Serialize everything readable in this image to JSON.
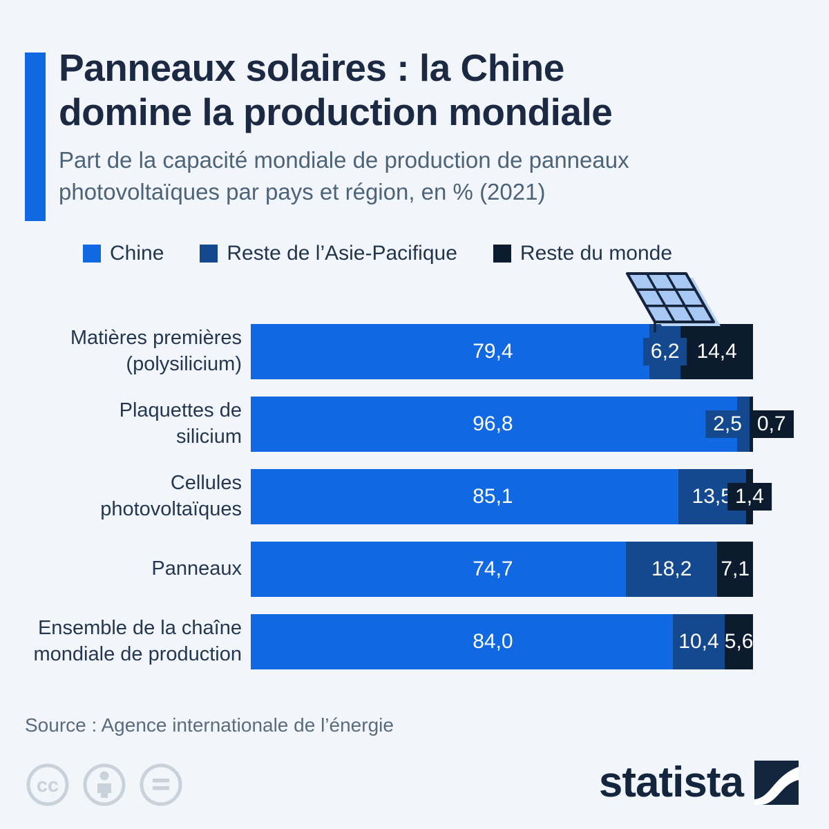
{
  "header": {
    "title_lines": [
      "Panneaux solaires : la Chine",
      "domine la production mondiale"
    ],
    "subtitle_lines": [
      "Part de la capacité mondiale de production de panneaux",
      "photovoltaïques par pays et région, en % (2021)"
    ],
    "accent_color": "#1168e3"
  },
  "legend": [
    {
      "label": "Chine",
      "color": "#1168e3"
    },
    {
      "label": "Reste de l’Asie-Pacifique",
      "color": "#15498f"
    },
    {
      "label": "Reste du monde",
      "color": "#0c1c2e"
    }
  ],
  "chart_data": {
    "type": "bar",
    "orientation": "horizontal",
    "stacked": true,
    "unit": "%",
    "xlim": [
      0,
      100
    ],
    "grid": false,
    "legend_position": "top",
    "title": "Panneaux solaires : la Chine domine la production mondiale",
    "subtitle": "Part de la capacité mondiale de production de panneaux photovoltaïques par pays et région, en % (2021)",
    "categories": [
      "Matières premières\n(polysilicium)",
      "Plaquettes de\nsilicium",
      "Cellules\nphotovoltaïques",
      "Panneaux",
      "Ensemble de la chaîne\nmondiale de production"
    ],
    "series": [
      {
        "name": "Chine",
        "color": "#1168e3",
        "values": [
          79.4,
          96.8,
          85.1,
          74.7,
          84.0
        ]
      },
      {
        "name": "Reste de l’Asie-Pacifique",
        "color": "#15498f",
        "values": [
          6.2,
          2.5,
          13.5,
          18.2,
          10.4
        ]
      },
      {
        "name": "Reste du monde",
        "color": "#0c1c2e",
        "values": [
          14.4,
          0.7,
          1.4,
          7.1,
          5.6
        ]
      }
    ],
    "value_labels": [
      [
        "79,4",
        "6,2",
        "14,4"
      ],
      [
        "96,8",
        "2,5",
        "0,7"
      ],
      [
        "85,1",
        "13,5",
        "1,4"
      ],
      [
        "74,7",
        "18,2",
        "7,1"
      ],
      [
        "84,0",
        "10,4",
        "5,6"
      ]
    ],
    "label_display": [
      [
        "bar-center",
        "chip",
        "inside"
      ],
      [
        "bar-center",
        "chip-left",
        "chip-right"
      ],
      [
        "bar-center",
        "inside",
        "chip"
      ],
      [
        "bar-center",
        "inside",
        "inside"
      ],
      [
        "bar-center",
        "inside",
        "inside"
      ]
    ]
  },
  "source": "Source : Agence internationale de l’énergie",
  "footer": {
    "brand": "statista",
    "brand_color": "#13263e",
    "license_icons": [
      "cc-icon",
      "by-icon",
      "nd-icon"
    ]
  }
}
